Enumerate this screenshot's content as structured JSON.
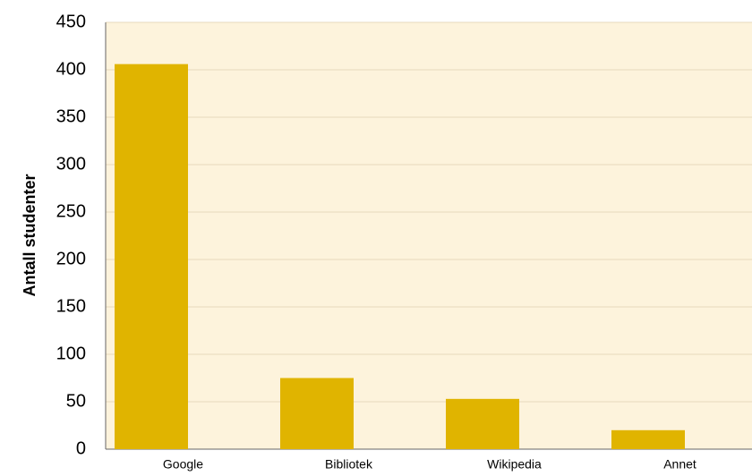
{
  "chart_data": {
    "type": "bar",
    "y_label": "Antall studenter",
    "categories": [
      "Google",
      "Bibliotek",
      "Wikipedia",
      "Annet"
    ],
    "values": [
      406,
      75,
      53,
      20
    ],
    "color": "#e0b400",
    "ylim": [
      0,
      450
    ],
    "yticks": [
      0,
      50,
      100,
      150,
      200,
      250,
      300,
      350,
      400,
      450
    ],
    "grid": true
  }
}
